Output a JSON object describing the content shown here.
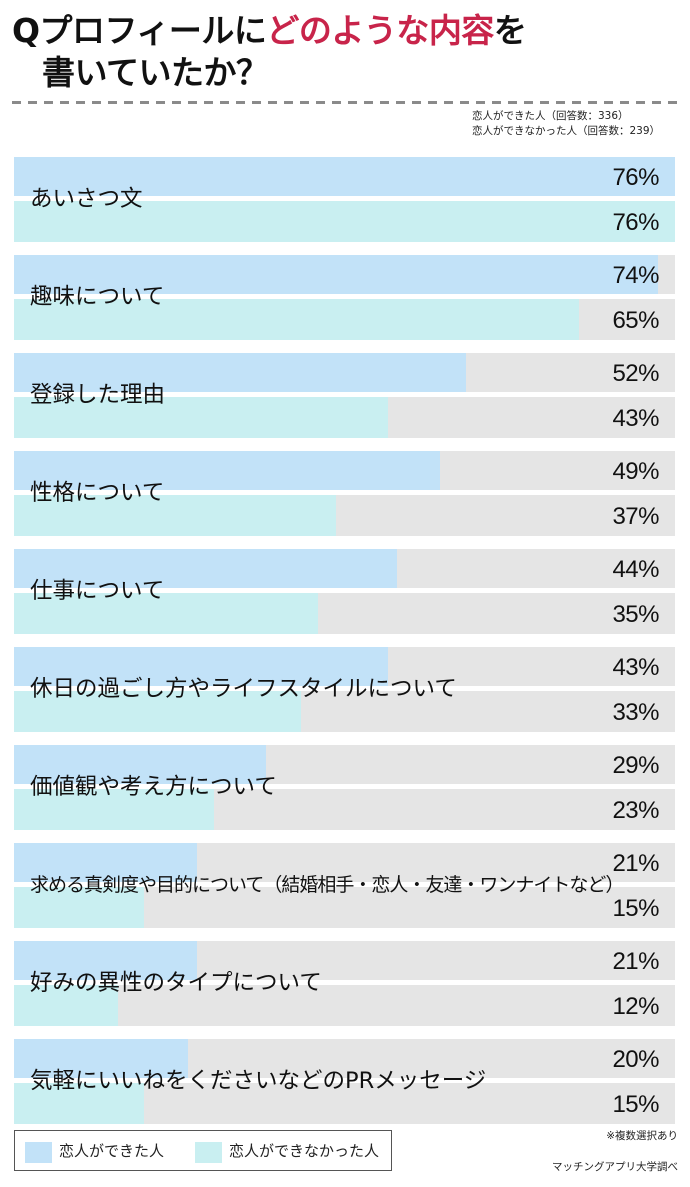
{
  "header": {
    "title_part1": "Qプロフィールに",
    "title_accent": "どのような内容",
    "title_part2": "を",
    "title_line2": "書いていたか？",
    "accent_color": "#c8244a"
  },
  "samples": {
    "series_a": "恋人ができた人（回答数：336）",
    "series_b": "恋人ができなかった人（回答数：239）"
  },
  "legend": {
    "series_a": "恋人ができた人",
    "series_b": "恋人ができなかった人"
  },
  "footnote": "※複数選択あり",
  "source": "マッチングアプリ大学調べ",
  "colors": {
    "series_a": "#c2e2f8",
    "series_b": "#c9eff1",
    "track": "#e5e5e5"
  },
  "chart_data": {
    "type": "bar",
    "orientation": "horizontal",
    "title": "Qプロフィールにどのような内容を書いていたか？",
    "xlabel": "",
    "ylabel": "",
    "xlim": [
      0,
      76
    ],
    "grid": false,
    "legend_position": "bottom-left",
    "categories": [
      "あいさつ文",
      "趣味について",
      "登録した理由",
      "性格について",
      "仕事について",
      "休日の過ごし方やライフスタイルについて",
      "価値観や考え方について",
      "求める真剣度や目的について（結婚相手・恋人・友達・ワンナイトなど）",
      "好みの異性のタイプについて",
      "気軽にいいねをくださいなどのPRメッセージ"
    ],
    "series": [
      {
        "name": "恋人ができた人",
        "n": 336,
        "values": [
          76,
          74,
          52,
          49,
          44,
          43,
          29,
          21,
          21,
          20
        ]
      },
      {
        "name": "恋人ができなかった人",
        "n": 239,
        "values": [
          76,
          65,
          43,
          37,
          35,
          33,
          23,
          15,
          12,
          15
        ]
      }
    ],
    "value_labels": {
      "a": [
        "76%",
        "74%",
        "52%",
        "49%",
        "44%",
        "43%",
        "29%",
        "21%",
        "21%",
        "20%"
      ],
      "b": [
        "76%",
        "65%",
        "43%",
        "37%",
        "35%",
        "33%",
        "23%",
        "15%",
        "12%",
        "15%"
      ]
    },
    "annotations": [
      "※複数選択あり",
      "マッチングアプリ大学調べ"
    ]
  }
}
